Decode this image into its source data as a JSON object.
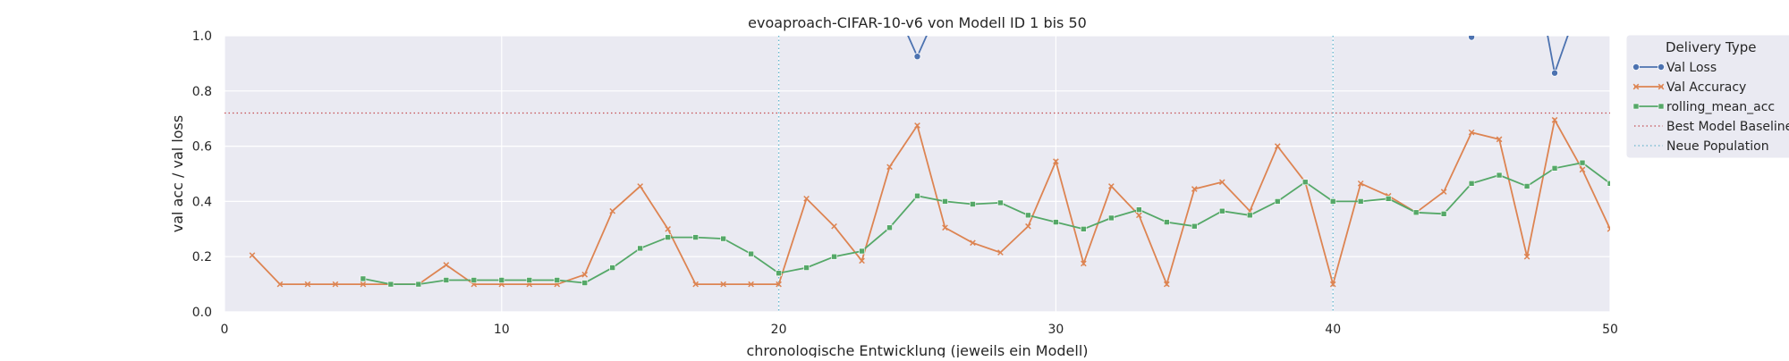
{
  "chart_data": {
    "type": "line",
    "title": "evoaproach-CIFAR-10-v6 von Modell ID 1 bis 50",
    "xlabel": "chronologische Entwicklung (jeweils ein Modell)",
    "ylabel": "val acc / val loss",
    "xlim": [
      0,
      50
    ],
    "ylim": [
      0,
      1.0
    ],
    "xticks": [
      0,
      10,
      20,
      30,
      40,
      50
    ],
    "yticks": [
      0.0,
      0.2,
      0.4,
      0.6,
      0.8,
      1.0
    ],
    "grid": true,
    "background": "#eaeaf2",
    "legend": {
      "title": "Delivery Type",
      "placement": "right",
      "entries": [
        "Val Loss",
        "Val Accuracy",
        "rolling_mean_acc",
        "Best Model Baseline",
        "Neue Population"
      ]
    },
    "series": [
      {
        "name": "Val Loss",
        "color": "#4c72b0",
        "marker": "circle",
        "x": [
          24,
          25,
          26,
          44,
          45,
          46,
          47,
          48,
          49
        ],
        "y": [
          1.15,
          0.925,
          1.15,
          1.2,
          0.995,
          1.2,
          1.4,
          0.865,
          1.15
        ]
      },
      {
        "name": "Val Accuracy",
        "color": "#dd8452",
        "marker": "x",
        "x": [
          1,
          2,
          3,
          4,
          5,
          6,
          7,
          8,
          9,
          10,
          11,
          12,
          13,
          14,
          15,
          16,
          17,
          18,
          19,
          20,
          21,
          22,
          23,
          24,
          25,
          26,
          27,
          28,
          29,
          30,
          31,
          32,
          33,
          34,
          35,
          36,
          37,
          38,
          39,
          40,
          41,
          42,
          43,
          44,
          45,
          46,
          47,
          48,
          49,
          50
        ],
        "y": [
          0.205,
          0.1,
          0.1,
          0.1,
          0.1,
          0.1,
          0.1,
          0.17,
          0.1,
          0.1,
          0.1,
          0.1,
          0.135,
          0.365,
          0.455,
          0.3,
          0.1,
          0.1,
          0.1,
          0.1,
          0.41,
          0.31,
          0.185,
          0.525,
          0.675,
          0.305,
          0.25,
          0.215,
          0.31,
          0.545,
          0.175,
          0.455,
          0.35,
          0.1,
          0.445,
          0.47,
          0.365,
          0.6,
          0.47,
          0.1,
          0.465,
          0.42,
          0.36,
          0.435,
          0.65,
          0.625,
          0.2,
          0.695,
          0.515,
          0.3
        ]
      },
      {
        "name": "rolling_mean_acc",
        "color": "#55a868",
        "marker": "square",
        "x": [
          5,
          6,
          7,
          8,
          9,
          10,
          11,
          12,
          13,
          14,
          15,
          16,
          17,
          18,
          19,
          20,
          21,
          22,
          23,
          24,
          25,
          26,
          27,
          28,
          29,
          30,
          31,
          32,
          33,
          34,
          35,
          36,
          37,
          38,
          39,
          40,
          41,
          42,
          43,
          44,
          45,
          46,
          47,
          48,
          49,
          50
        ],
        "y": [
          0.12,
          0.1,
          0.1,
          0.115,
          0.115,
          0.115,
          0.115,
          0.115,
          0.105,
          0.16,
          0.23,
          0.27,
          0.27,
          0.265,
          0.21,
          0.14,
          0.16,
          0.2,
          0.22,
          0.305,
          0.42,
          0.4,
          0.39,
          0.395,
          0.35,
          0.325,
          0.3,
          0.34,
          0.37,
          0.325,
          0.31,
          0.365,
          0.35,
          0.4,
          0.47,
          0.4,
          0.4,
          0.41,
          0.36,
          0.355,
          0.465,
          0.495,
          0.455,
          0.52,
          0.54,
          0.465
        ]
      }
    ],
    "baseline": {
      "name": "Best Model Baseline",
      "y": 0.72,
      "color": "#c44e52"
    },
    "new_population": {
      "name": "Neue Population",
      "x": [
        20,
        40
      ],
      "color": "#64b5cd"
    }
  }
}
